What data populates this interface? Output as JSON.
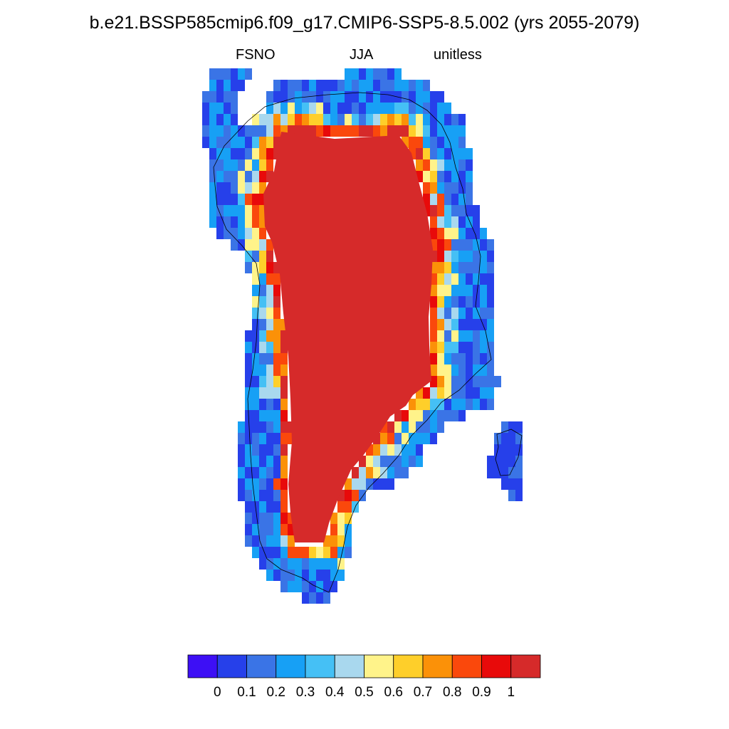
{
  "figure": {
    "title": "b.e21.BSSP585cmip6.f09_g17.CMIP6-SSP5-8.5.002 (yrs 2055-2079)",
    "left_string": "FSNO",
    "center_string": "JJA",
    "right_string": "unitless"
  },
  "map": {
    "region": "Greenland",
    "variable": "FSNO",
    "season": "JJA",
    "interior_value": "1",
    "outline": "coastline"
  },
  "colorbar": {
    "labels": [
      "0",
      "0.1",
      "0.2",
      "0.3",
      "0.4",
      "0.5",
      "0.6",
      "0.7",
      "0.8",
      "0.9",
      "1"
    ],
    "colors": [
      "#3d0ff5",
      "#2640ea",
      "#3a74e6",
      "#17a0f5",
      "#45c0f5",
      "#a9d8ee",
      "#fff38a",
      "#fecf2a",
      "#fb9108",
      "#fa480c",
      "#e80a0a",
      "#d62a2a"
    ]
  }
}
